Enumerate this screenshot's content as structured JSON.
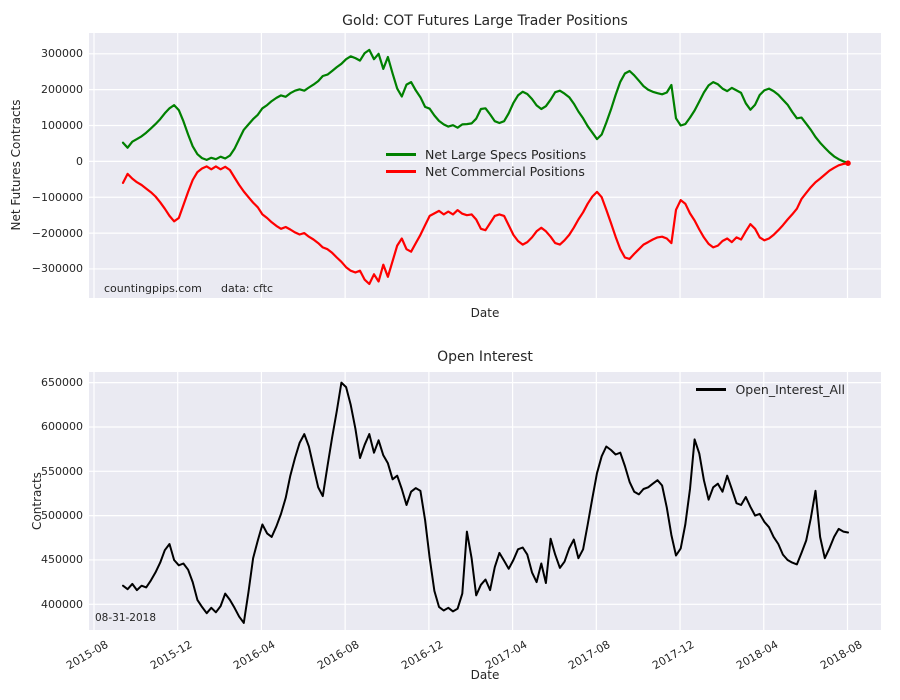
{
  "figure": {
    "background": "#ffffff",
    "axes_background": "#eaeaf2",
    "grid_color": "#ffffff",
    "text_color": "#262626"
  },
  "chart_data": [
    {
      "type": "line",
      "title": "Gold: COT Futures Large Trader Positions",
      "xlabel": "Date",
      "ylabel": "Net Futures Contracts",
      "watermark": "countingpips.com",
      "source_note": "data: cftc",
      "grid": true,
      "ylim": [
        -381000,
        358000
      ],
      "yticks": [
        {
          "value": 300000,
          "label": "300000"
        },
        {
          "value": 200000,
          "label": "200000"
        },
        {
          "value": 100000,
          "label": "100000"
        },
        {
          "value": 0,
          "label": "0"
        },
        {
          "value": -100000,
          "label": "−100000"
        },
        {
          "value": -200000,
          "label": "−200000"
        },
        {
          "value": -300000,
          "label": "−300000"
        }
      ],
      "x_ticks": [
        "2015-08",
        "2015-12",
        "2016-04",
        "2016-08",
        "2016-12",
        "2017-04",
        "2017-08",
        "2017-12",
        "2018-04",
        "2018-08"
      ],
      "show_x_tick_labels": false,
      "legend": {
        "position": "center",
        "entries": [
          {
            "label": "Net Large Specs Positions",
            "color": "#008000"
          },
          {
            "label": "Net Commercial Positions",
            "color": "#ff0000"
          }
        ]
      },
      "series": [
        {
          "name": "Net Large Specs Positions",
          "color": "#008000",
          "values": [
            52000,
            38000,
            55000,
            62000,
            70000,
            80000,
            92000,
            104000,
            118000,
            134000,
            148000,
            157000,
            143000,
            112000,
            75000,
            42000,
            20000,
            9000,
            4000,
            10000,
            6000,
            13000,
            8000,
            16000,
            35000,
            62000,
            88000,
            103000,
            118000,
            130000,
            148000,
            157000,
            168000,
            177000,
            184000,
            180000,
            190000,
            197000,
            201000,
            197000,
            206000,
            214000,
            224000,
            238000,
            242000,
            252000,
            263000,
            272000,
            285000,
            293000,
            288000,
            281000,
            302000,
            311000,
            285000,
            300000,
            258000,
            291000,
            245000,
            203000,
            181000,
            214000,
            221000,
            198000,
            179000,
            152000,
            147000,
            128000,
            113000,
            103000,
            97000,
            101000,
            94000,
            103000,
            104000,
            106000,
            119000,
            146000,
            148000,
            131000,
            112000,
            107000,
            112000,
            134000,
            163000,
            184000,
            194000,
            188000,
            174000,
            156000,
            146000,
            154000,
            172000,
            193000,
            197000,
            189000,
            179000,
            161000,
            139000,
            120000,
            98000,
            80000,
            62000,
            75000,
            108000,
            145000,
            185000,
            222000,
            245000,
            252000,
            240000,
            225000,
            210000,
            200000,
            194000,
            190000,
            187000,
            192000,
            213000,
            120000,
            100000,
            104000,
            122000,
            142000,
            167000,
            192000,
            212000,
            221000,
            215000,
            203000,
            196000,
            205000,
            198000,
            191000,
            162000,
            144000,
            158000,
            185000,
            198000,
            203000,
            196000,
            186000,
            172000,
            158000,
            138000,
            120000,
            122000,
            105000,
            88000,
            68000,
            52000,
            38000,
            25000,
            14000,
            6000,
            0,
            -4000
          ]
        },
        {
          "name": "Net Commercial Positions",
          "color": "#ff0000",
          "end_marker": true,
          "values": [
            -60000,
            -35000,
            -48000,
            -58000,
            -66000,
            -76000,
            -86000,
            -98000,
            -114000,
            -132000,
            -152000,
            -167000,
            -158000,
            -122000,
            -85000,
            -52000,
            -30000,
            -20000,
            -14000,
            -22000,
            -14000,
            -22000,
            -15000,
            -24000,
            -45000,
            -66000,
            -84000,
            -100000,
            -115000,
            -128000,
            -148000,
            -158000,
            -170000,
            -180000,
            -188000,
            -183000,
            -190000,
            -198000,
            -204000,
            -200000,
            -210000,
            -218000,
            -228000,
            -240000,
            -245000,
            -255000,
            -268000,
            -280000,
            -295000,
            -305000,
            -310000,
            -305000,
            -330000,
            -342000,
            -315000,
            -335000,
            -288000,
            -322000,
            -278000,
            -235000,
            -215000,
            -245000,
            -252000,
            -228000,
            -205000,
            -178000,
            -152000,
            -145000,
            -138000,
            -148000,
            -140000,
            -148000,
            -136000,
            -146000,
            -150000,
            -148000,
            -162000,
            -188000,
            -192000,
            -172000,
            -152000,
            -148000,
            -152000,
            -178000,
            -205000,
            -222000,
            -232000,
            -225000,
            -212000,
            -195000,
            -185000,
            -195000,
            -210000,
            -228000,
            -232000,
            -220000,
            -205000,
            -185000,
            -162000,
            -142000,
            -118000,
            -98000,
            -85000,
            -100000,
            -135000,
            -172000,
            -210000,
            -245000,
            -268000,
            -272000,
            -258000,
            -245000,
            -232000,
            -225000,
            -218000,
            -212000,
            -210000,
            -215000,
            -228000,
            -135000,
            -108000,
            -118000,
            -145000,
            -165000,
            -190000,
            -212000,
            -230000,
            -240000,
            -235000,
            -222000,
            -215000,
            -225000,
            -212000,
            -218000,
            -195000,
            -175000,
            -188000,
            -212000,
            -220000,
            -215000,
            -205000,
            -192000,
            -178000,
            -162000,
            -148000,
            -132000,
            -105000,
            -88000,
            -72000,
            -58000,
            -48000,
            -37000,
            -26000,
            -18000,
            -11000,
            -7000,
            -5000
          ]
        }
      ]
    },
    {
      "type": "line",
      "title": "Open Interest",
      "xlabel": "Date",
      "ylabel": "Contracts",
      "annotation": "08-31-2018",
      "grid": true,
      "ylim": [
        371000,
        662000
      ],
      "yticks": [
        {
          "value": 650000,
          "label": "650000"
        },
        {
          "value": 600000,
          "label": "600000"
        },
        {
          "value": 550000,
          "label": "550000"
        },
        {
          "value": 500000,
          "label": "500000"
        },
        {
          "value": 450000,
          "label": "450000"
        },
        {
          "value": 400000,
          "label": "400000"
        }
      ],
      "x_ticks": [
        "2015-08",
        "2015-12",
        "2016-04",
        "2016-08",
        "2016-12",
        "2017-04",
        "2017-08",
        "2017-12",
        "2018-04",
        "2018-08"
      ],
      "show_x_tick_labels": true,
      "legend": {
        "position": "upper right",
        "entries": [
          {
            "label": "Open_Interest_All",
            "color": "#000000"
          }
        ]
      },
      "series": [
        {
          "name": "Open_Interest_All",
          "color": "#000000",
          "values": [
            421000,
            417000,
            423000,
            416000,
            421000,
            419000,
            427000,
            436000,
            447000,
            461000,
            468000,
            450000,
            444000,
            446000,
            439000,
            425000,
            405000,
            397000,
            390000,
            396000,
            391000,
            398000,
            412000,
            405000,
            396000,
            386000,
            379000,
            414000,
            452000,
            472000,
            490000,
            480000,
            476000,
            488000,
            502000,
            520000,
            545000,
            565000,
            582000,
            592000,
            578000,
            555000,
            532000,
            522000,
            556000,
            588000,
            618000,
            650000,
            645000,
            625000,
            598000,
            565000,
            580000,
            592000,
            571000,
            585000,
            568000,
            559000,
            541000,
            545000,
            530000,
            512000,
            527000,
            531000,
            528000,
            495000,
            452000,
            415000,
            397000,
            393000,
            396000,
            392000,
            395000,
            412000,
            482000,
            452000,
            410000,
            422000,
            428000,
            416000,
            442000,
            458000,
            449000,
            440000,
            450000,
            462000,
            464000,
            456000,
            436000,
            425000,
            446000,
            424000,
            474000,
            456000,
            441000,
            448000,
            463000,
            473000,
            452000,
            462000,
            490000,
            520000,
            548000,
            567000,
            578000,
            574000,
            569000,
            571000,
            556000,
            538000,
            527000,
            524000,
            530000,
            532000,
            536000,
            540000,
            534000,
            509000,
            478000,
            455000,
            463000,
            490000,
            530000,
            586000,
            570000,
            540000,
            518000,
            532000,
            536000,
            527000,
            545000,
            530000,
            514000,
            512000,
            521000,
            510000,
            500000,
            502000,
            493000,
            487000,
            476000,
            468000,
            456000,
            450000,
            447000,
            445000,
            458000,
            472000,
            497000,
            528000,
            476000,
            452000,
            463000,
            476000,
            485000,
            482000,
            481000
          ]
        }
      ]
    }
  ]
}
